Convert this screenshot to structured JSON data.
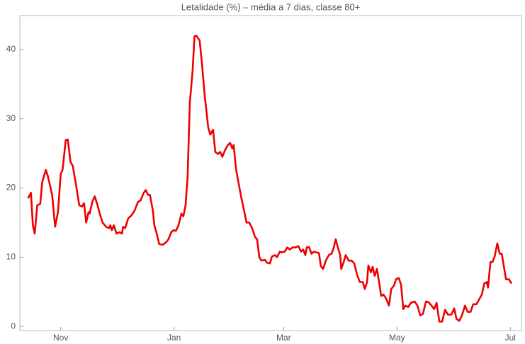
{
  "chart_data": {
    "type": "line",
    "title": "Letalidade (%) – média a 7 dias, classe 80+",
    "color": "#ee0000",
    "x": [
      -17.6,
      -16,
      -15,
      -14,
      -12.6,
      -11,
      -10,
      -8,
      -7,
      -4.6,
      -3,
      -1.5,
      0,
      1,
      2.7,
      3.8,
      5.3,
      6.5,
      8,
      10,
      11.5,
      12.6,
      13.7,
      15,
      15.6,
      17,
      18.3,
      19.5,
      21,
      22.5,
      24.4,
      26,
      26.7,
      27.5,
      28.6,
      30,
      31.7,
      33,
      33.6,
      34.7,
      36.3,
      38,
      39.7,
      41.6,
      43,
      44.7,
      45.8,
      47,
      48,
      49.6,
      50.4,
      51.5,
      53,
      55,
      56.9,
      58,
      59.5,
      60.7,
      62,
      63.4,
      65,
      66,
      67.2,
      68.3,
      69.5,
      71,
      72,
      73,
      74.8,
      76,
      77.5,
      79.4,
      80.5,
      82,
      83.2,
      84.7,
      85.9,
      87,
      88.5,
      90,
      91.2,
      92.4,
      93.1,
      94.3,
      95.8,
      97.3,
      98.9,
      100,
      101.5,
      103,
      104.6,
      105.7,
      106.9,
      108,
      110,
      111,
      112.6,
      113.7,
      115.3,
      116.4,
      118,
      119,
      120.6,
      122,
      123.3,
      124.8,
      126.3,
      127.9,
      129.4,
      130.5,
      131.7,
      132.4,
      133.6,
      135,
      136.3,
      137.4,
      139,
      140,
      141.2,
      142.7,
      144.3,
      145.8,
      147,
      148,
      149.2,
      150.4,
      151,
      152.3,
      153.4,
      155,
      156.5,
      158,
      159.5,
      161,
      162.6,
      163.7,
      164.9,
      165.6,
      167,
      167.9,
      169,
      170.2,
      171.4,
      172.5,
      173.7,
      175.2,
      176.7,
      177.9,
      179.4,
      180.5,
      182,
      183.2,
      184.4,
      185.5,
      187,
      188.5,
      190.5,
      192,
      193.5,
      195,
      196.6,
      198,
      199.6,
      201,
      202.3,
      203.8,
      205.3,
      206.9,
      208.4,
      210.3,
      211.8,
      213,
      214.5,
      216,
      217.6,
      219,
      220.6,
      222,
      223.7,
      225,
      226.7,
      228,
      229.4,
      230,
      231.3,
      232.4,
      233.6,
      235,
      236.3,
      237.4,
      238.5,
      239.7,
      241.2,
      242.7
    ],
    "values": [
      18.5,
      19.3,
      14.6,
      13.4,
      17.5,
      17.7,
      20.8,
      22.6,
      21.8,
      19,
      14.4,
      16.5,
      22,
      22.6,
      26.9,
      27,
      23.7,
      23.2,
      20.8,
      17.5,
      17.3,
      17.8,
      15,
      16.5,
      16.3,
      18,
      18.8,
      17.8,
      16.3,
      15,
      14.4,
      14.2,
      14.6,
      13.9,
      14.6,
      13.4,
      13.6,
      13.4,
      14.4,
      14.2,
      15.6,
      16,
      16.7,
      18,
      18.2,
      19.3,
      19.7,
      19,
      19,
      16.7,
      14.6,
      13.6,
      11.9,
      11.8,
      12.2,
      12.6,
      13.6,
      13.9,
      13.8,
      14.6,
      16.3,
      15.9,
      17.5,
      21.6,
      32.3,
      37,
      41.9,
      42,
      41.3,
      38,
      33.4,
      28.7,
      27.7,
      28.4,
      25.2,
      24.9,
      25.2,
      24.5,
      25.5,
      26.2,
      26.5,
      25.7,
      26.2,
      22.8,
      20.6,
      18.5,
      16.5,
      15,
      15,
      14.2,
      12.9,
      12.6,
      10,
      9.5,
      9.6,
      9.2,
      9.1,
      10.1,
      10.3,
      10,
      10.8,
      10.7,
      10.8,
      11.4,
      11.1,
      11.4,
      11.4,
      11.6,
      10.8,
      11.1,
      10.3,
      11.4,
      11.5,
      10.5,
      10.8,
      10.7,
      10.6,
      8.7,
      8.3,
      9.5,
      10.3,
      10.5,
      11.4,
      12.6,
      11.4,
      10.3,
      8.3,
      9.3,
      10.3,
      9.5,
      9.5,
      9.1,
      7.5,
      6.4,
      6.4,
      5.4,
      6.4,
      8.8,
      7.8,
      8.6,
      7.3,
      8.3,
      6.4,
      4.4,
      4.6,
      4,
      3,
      5.4,
      5.9,
      6.8,
      7,
      6,
      2.5,
      3,
      2.8,
      3.4,
      3.6,
      3,
      1.6,
      1.8,
      3.6,
      3.5,
      3,
      2.5,
      3.4,
      0.7,
      0.7,
      2.4,
      1.7,
      1.7,
      2.6,
      1.1,
      0.8,
      1.6,
      3,
      2.1,
      2.1,
      3.2,
      3.2,
      3.8,
      4.6,
      6.2,
      6.4,
      5.6,
      9.3,
      9.3,
      10.1,
      12,
      10.5,
      10.5,
      8.7,
      6.8,
      6.8,
      6.2
    ],
    "xlim": [
      -22,
      248
    ],
    "xticks": [
      {
        "value": 0,
        "label": "Nov"
      },
      {
        "value": 61,
        "label": "Jan"
      },
      {
        "value": 120,
        "label": "Mar"
      },
      {
        "value": 181,
        "label": "May"
      },
      {
        "value": 242,
        "label": "Jul"
      }
    ],
    "ylim": [
      -0.6,
      44.9
    ],
    "yticks": [
      0,
      10,
      20,
      30,
      40
    ]
  }
}
